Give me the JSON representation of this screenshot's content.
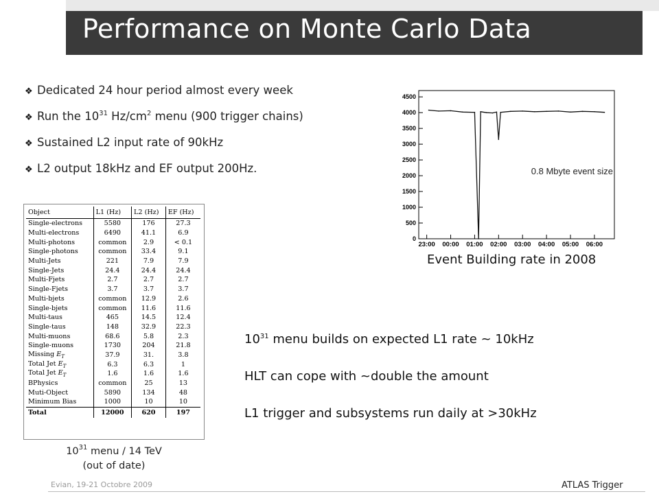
{
  "slide": {
    "title": "Performance on Monte Carlo Data",
    "bullets": [
      {
        "text": "Dedicated 24 hour period almost  every week"
      },
      {
        "pre": "Run the 10",
        "sup": "31",
        "mid": " Hz/cm",
        "sup2": "2",
        "post": " menu (900 trigger chains)"
      },
      {
        "text": "Sustained L2 input rate of 90kHz"
      },
      {
        "text": "L2 output 18kHz and EF output 200Hz."
      }
    ],
    "notes": [
      {
        "pre": "10",
        "sup": "31",
        "post": " menu builds on expected L1 rate ~ 10kHz"
      },
      {
        "text": "HLT can cope with ~double the amount"
      },
      {
        "text": "L1 trigger and subsystems run daily at >30kHz"
      }
    ],
    "footer_left": "Evian, 19-21 Octobre 2009",
    "footer_right": "ATLAS Trigger"
  },
  "rate_table": {
    "headers": [
      "Object",
      "L1 (Hz)",
      "L2 (Hz)",
      "EF (Hz)"
    ],
    "rows": [
      [
        "Single-electrons",
        "5580",
        "176",
        "27.3"
      ],
      [
        "Multi-electrons",
        "6490",
        "41.1",
        "6.9"
      ],
      [
        "Multi-photons",
        "common",
        "2.9",
        "< 0.1"
      ],
      [
        "Single-photons",
        "common",
        "33.4",
        "9.1"
      ],
      [
        "Multi-Jets",
        "221",
        "7.9",
        "7.9"
      ],
      [
        "Single-Jets",
        "24.4",
        "24.4",
        "24.4"
      ],
      [
        "Multi-Fjets",
        "2.7",
        "2.7",
        "2.7"
      ],
      [
        "Single-Fjets",
        "3.7",
        "3.7",
        "3.7"
      ],
      [
        "Multi-bjets",
        "common",
        "12.9",
        "2.6"
      ],
      [
        "Single-bjets",
        "common",
        "11.6",
        "11.6"
      ],
      [
        "Multi-taus",
        "465",
        "14.5",
        "12.4"
      ],
      [
        "Single-taus",
        "148",
        "32.9",
        "22.3"
      ],
      [
        "Multi-muons",
        "68.6",
        "5.8",
        "2.3"
      ],
      [
        "Single-muons",
        "1730",
        "204",
        "21.8"
      ],
      [
        "Missing E_T",
        "37.9",
        "31.",
        "3.8"
      ],
      [
        "Total Jet E_T",
        "6.3",
        "6.3",
        "1"
      ],
      [
        "Total Jet E_T",
        "1.6",
        "1.6",
        "1.6"
      ],
      [
        "BPhysics",
        "common",
        "25",
        "13"
      ],
      [
        "Muti-Object",
        "5890",
        "134",
        "48"
      ],
      [
        "Minimum Bias",
        "1000",
        "10",
        "10"
      ]
    ],
    "total": [
      "Total",
      "12000",
      "620",
      "197"
    ],
    "caption": {
      "pre": "10",
      "sup": "31",
      "post": " menu / 14 TeV",
      "line2": "(out of date)"
    }
  },
  "chart_data": {
    "type": "line",
    "title": "",
    "caption": "Event Building rate in 2008",
    "annotation": "0.8 Mbyte event size",
    "xlabel": "",
    "ylabel": "",
    "x_ticks": [
      "23:00",
      "00:00",
      "01:00",
      "02:00",
      "03:00",
      "04:00",
      "05:00",
      "06:00"
    ],
    "y_ticks": [
      0,
      500,
      1000,
      1500,
      2000,
      2500,
      3000,
      3500,
      4000,
      4500
    ],
    "xlim": [
      "22:40",
      "06:50"
    ],
    "ylim": [
      0,
      4700
    ],
    "series": [
      {
        "x": [
          "23:05",
          "23:30",
          "00:00",
          "00:30",
          "01:00",
          "01:10",
          "01:15",
          "01:30",
          "01:45",
          "01:55",
          "02:00",
          "02:05",
          "02:30",
          "03:00",
          "03:30",
          "04:00",
          "04:30",
          "05:00",
          "05:30",
          "06:00",
          "06:25"
        ],
        "y": [
          4080,
          4050,
          4060,
          4020,
          4010,
          0,
          4030,
          4000,
          3990,
          4020,
          3150,
          4010,
          4040,
          4050,
          4030,
          4040,
          4050,
          4020,
          4040,
          4030,
          4010
        ]
      }
    ],
    "grid": false
  }
}
